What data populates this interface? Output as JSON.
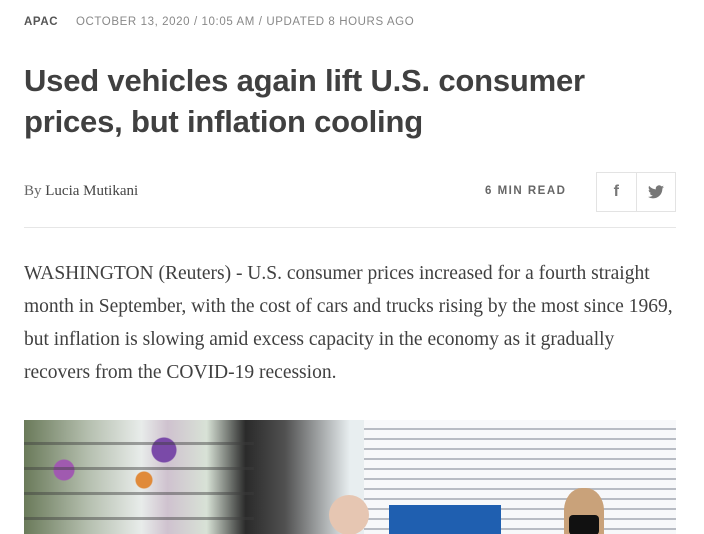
{
  "meta": {
    "section": "APAC",
    "dateline": "OCTOBER 13, 2020 / 10:05 AM / UPDATED 8 HOURS AGO"
  },
  "headline": "Used vehicles again lift U.S. consumer prices, but inflation cooling",
  "byline": {
    "prefix": "By",
    "author": "Lucia Mutikani"
  },
  "read_time": "6 MIN READ",
  "share": {
    "facebook": "f",
    "twitter": "🐦"
  },
  "body": "WASHINGTON (Reuters) - U.S. consumer prices increased for a fourth straight month in September, with the cost of cars and trucks rising by the most since 1969, but inflation is slowing amid excess capacity in the economy as it gradually recovers from the COVID-19 recession."
}
